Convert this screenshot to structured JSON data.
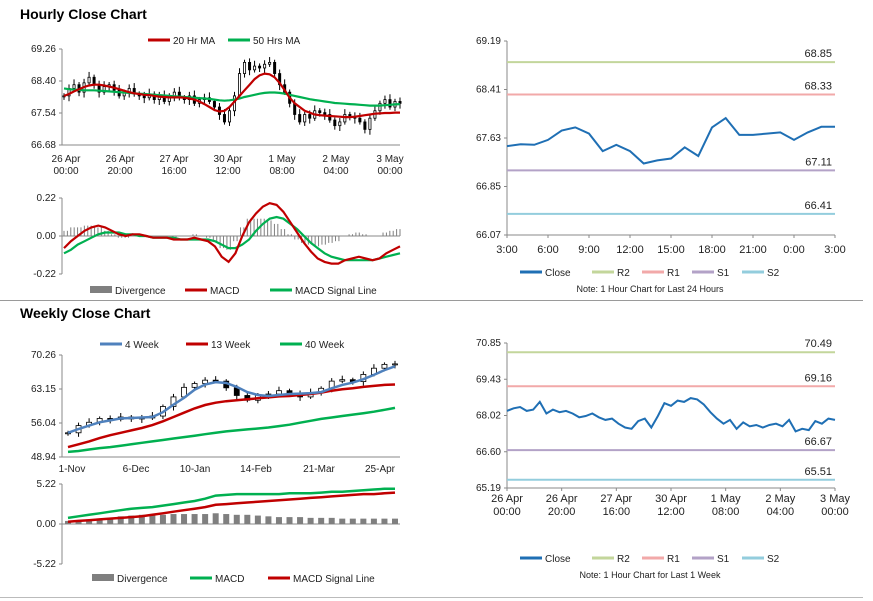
{
  "sections": {
    "hourly_title": "Hourly Close Chart",
    "weekly_title": "Weekly Close Chart"
  },
  "colors": {
    "ma_short": "#c00000",
    "ma_long": "#00b050",
    "close": "#1f6fb4",
    "r2": "#c3d69b",
    "r1": "#f2a9a9",
    "s1": "#b3a2c7",
    "s2": "#93cddd",
    "divergence": "#7f7f7f",
    "week4": "#4f81bd"
  },
  "chart_data": [
    {
      "id": "hourly_price",
      "type": "candlestick",
      "title": "",
      "ylim": [
        66.68,
        69.26
      ],
      "yticks": [
        "69.26",
        "68.40",
        "67.54",
        "66.68"
      ],
      "xticks": [
        [
          "26 Apr",
          "00:00"
        ],
        [
          "26 Apr",
          "20:00"
        ],
        [
          "27 Apr",
          "16:00"
        ],
        [
          "30 Apr",
          "12:00"
        ],
        [
          "1 May",
          "08:00"
        ],
        [
          "2 May",
          "04:00"
        ],
        [
          "3 May",
          "00:00"
        ]
      ],
      "legend": [
        "20 Hr MA",
        "50 Hrs MA"
      ],
      "close_series": [
        68.0,
        68.2,
        68.3,
        68.1,
        68.35,
        68.5,
        68.3,
        68.1,
        68.25,
        68.3,
        68.15,
        68.0,
        68.1,
        68.2,
        68.05,
        68.0,
        67.95,
        68.05,
        67.9,
        68.0,
        67.85,
        68.0,
        68.1,
        67.95,
        67.9,
        68.0,
        67.8,
        67.9,
        67.95,
        67.85,
        67.7,
        67.5,
        67.3,
        67.6,
        68.0,
        68.6,
        68.9,
        68.7,
        68.8,
        68.75,
        68.85,
        68.9,
        68.6,
        68.3,
        68.1,
        67.8,
        67.5,
        67.3,
        67.5,
        67.4,
        67.6,
        67.55,
        67.5,
        67.35,
        67.2,
        67.3,
        67.5,
        67.45,
        67.4,
        67.3,
        67.1,
        67.4,
        67.6,
        67.8,
        67.9,
        67.7,
        67.85,
        67.8
      ],
      "ma20": [
        68.0,
        68.05,
        68.12,
        68.18,
        68.24,
        68.28,
        68.3,
        68.3,
        68.28,
        68.25,
        68.22,
        68.18,
        68.14,
        68.1,
        68.07,
        68.05,
        68.03,
        68.02,
        68.0,
        67.98,
        67.97,
        67.96,
        67.96,
        67.96,
        67.95,
        67.93,
        67.9,
        67.85,
        67.78,
        67.7,
        67.62,
        67.58,
        67.6,
        67.7,
        67.85,
        68.0,
        68.15,
        68.3,
        68.45,
        68.55,
        68.6,
        68.58,
        68.5,
        68.35,
        68.15,
        67.95,
        67.8,
        67.7,
        67.6,
        67.55,
        67.5,
        67.48,
        67.47,
        67.46,
        67.45,
        67.44,
        67.43,
        67.43,
        67.44,
        67.46,
        67.48,
        67.5,
        67.52,
        67.53,
        67.54,
        67.54,
        67.55,
        67.55
      ],
      "ma50": [
        68.2,
        68.18,
        68.17,
        68.16,
        68.15,
        68.15,
        68.15,
        68.14,
        68.13,
        68.12,
        68.11,
        68.1,
        68.09,
        68.08,
        68.07,
        68.06,
        68.05,
        68.04,
        68.03,
        68.02,
        68.01,
        68.0,
        67.99,
        67.98,
        67.97,
        67.96,
        67.95,
        67.94,
        67.93,
        67.92,
        67.9,
        67.88,
        67.87,
        67.88,
        67.9,
        67.93,
        67.97,
        68.0,
        68.03,
        68.06,
        68.08,
        68.09,
        68.09,
        68.08,
        68.06,
        68.03,
        68.0,
        67.97,
        67.94,
        67.91,
        67.89,
        67.87,
        67.85,
        67.83,
        67.81,
        67.8,
        67.79,
        67.78,
        67.77,
        67.76,
        67.75,
        67.74,
        67.74,
        67.74,
        67.75,
        67.76,
        67.77,
        67.78
      ]
    },
    {
      "id": "hourly_macd",
      "type": "line+bar",
      "ylim": [
        -0.22,
        0.22
      ],
      "yticks": [
        "0.22",
        "0.00",
        "-0.22"
      ],
      "legend": [
        "Divergence",
        "MACD",
        "MACD Signal Line"
      ],
      "macd": [
        -0.07,
        -0.03,
        0.0,
        0.03,
        0.05,
        0.06,
        0.05,
        0.03,
        0.01,
        0.0,
        0.01,
        0.01,
        0.0,
        -0.01,
        -0.01,
        -0.01,
        -0.02,
        -0.02,
        -0.02,
        -0.01,
        -0.02,
        -0.03,
        -0.06,
        -0.12,
        -0.15,
        -0.1,
        0.0,
        0.08,
        0.13,
        0.17,
        0.19,
        0.18,
        0.14,
        0.08,
        0.02,
        -0.04,
        -0.09,
        -0.13,
        -0.15,
        -0.16,
        -0.16,
        -0.14,
        -0.13,
        -0.12,
        -0.13,
        -0.14,
        -0.13,
        -0.1,
        -0.08,
        -0.06
      ],
      "signal": [
        -0.1,
        -0.08,
        -0.05,
        -0.03,
        -0.01,
        0.01,
        0.02,
        0.02,
        0.02,
        0.01,
        0.01,
        0.0,
        0.0,
        -0.01,
        -0.01,
        -0.01,
        -0.01,
        -0.02,
        -0.02,
        -0.02,
        -0.02,
        -0.02,
        -0.03,
        -0.05,
        -0.07,
        -0.07,
        -0.05,
        -0.02,
        0.03,
        0.07,
        0.1,
        0.11,
        0.1,
        0.07,
        0.04,
        0.0,
        -0.04,
        -0.07,
        -0.1,
        -0.12,
        -0.13,
        -0.14,
        -0.14,
        -0.14,
        -0.14,
        -0.14,
        -0.13,
        -0.12,
        -0.11,
        -0.1
      ]
    },
    {
      "id": "hourly_close_levels",
      "type": "line",
      "ylim": [
        66.07,
        69.19
      ],
      "yticks": [
        "69.19",
        "68.41",
        "67.63",
        "66.85",
        "66.07"
      ],
      "xticks": [
        "3:00",
        "6:00",
        "9:00",
        "12:00",
        "15:00",
        "18:00",
        "21:00",
        "0:00",
        "3:00"
      ],
      "levels": [
        {
          "name": "R2",
          "value": 68.85,
          "label": "68.85"
        },
        {
          "name": "R1",
          "value": 68.33,
          "label": "68.33"
        },
        {
          "name": "S1",
          "value": 67.11,
          "label": "67.11"
        },
        {
          "name": "S2",
          "value": 66.41,
          "label": "66.41"
        }
      ],
      "close": [
        67.5,
        67.53,
        67.52,
        67.6,
        67.75,
        67.8,
        67.7,
        67.42,
        67.52,
        67.42,
        67.22,
        67.27,
        67.3,
        67.48,
        67.34,
        67.8,
        67.95,
        67.68,
        67.68,
        67.7,
        67.72,
        67.6,
        67.72,
        67.81,
        67.81
      ],
      "legend": [
        "Close",
        "R2",
        "R1",
        "S1",
        "S2"
      ],
      "note": "Note: 1 Hour Chart for Last 24 Hours"
    },
    {
      "id": "weekly_price",
      "type": "candlestick",
      "ylim": [
        48.94,
        70.26
      ],
      "yticks": [
        "70.26",
        "63.15",
        "56.04",
        "48.94"
      ],
      "xticks": [
        "1-Nov",
        "6-Dec",
        "10-Jan",
        "14-Feb",
        "21-Mar",
        "25-Apr"
      ],
      "legend": [
        "4 Week",
        "13 Week",
        "40 Week"
      ],
      "close_series": [
        54,
        55.5,
        56.2,
        57,
        56.8,
        57.3,
        56.9,
        57.1,
        57.5,
        59.5,
        61.5,
        63.5,
        64.3,
        65,
        64.8,
        63.4,
        61.8,
        60.8,
        61.9,
        62.1,
        62.8,
        62.2,
        61.5,
        62.4,
        63.3,
        64.8,
        65.1,
        64.7,
        66.2,
        67.5,
        68.3,
        68.4
      ],
      "week4": [
        54,
        54.8,
        55.5,
        56.2,
        56.6,
        57,
        57.1,
        57.2,
        57.3,
        58.3,
        59.9,
        61.3,
        63,
        64.1,
        64.6,
        64.4,
        63.6,
        62.5,
        61.9,
        61.7,
        61.9,
        62.1,
        62.2,
        62.3,
        62.5,
        63.3,
        64,
        64.5,
        65.2,
        66.1,
        67.1,
        67.9
      ],
      "week13": [
        51,
        51.6,
        52.2,
        52.9,
        53.5,
        54,
        54.5,
        55,
        55.6,
        56.4,
        57.3,
        58.2,
        59.1,
        59.8,
        60.3,
        60.6,
        60.8,
        61,
        61.2,
        61.4,
        61.6,
        61.7,
        61.9,
        62.1,
        62.4,
        62.8,
        63.1,
        63.3,
        63.6,
        63.8,
        64,
        64.1
      ],
      "week40": [
        50,
        50.2,
        50.5,
        50.8,
        51,
        51.3,
        51.6,
        51.9,
        52.2,
        52.5,
        52.8,
        53.1,
        53.4,
        53.7,
        54,
        54.3,
        54.5,
        54.7,
        54.9,
        55.1,
        55.4,
        55.7,
        56.1,
        56.5,
        56.9,
        57.2,
        57.5,
        57.8,
        58.1,
        58.4,
        58.8,
        59.2
      ]
    },
    {
      "id": "weekly_macd",
      "type": "line+bar",
      "ylim": [
        -5.22,
        5.22
      ],
      "yticks": [
        "5.22",
        "0.00",
        "-5.22"
      ],
      "legend": [
        "Divergence",
        "MACD",
        "MACD Signal Line"
      ],
      "macd": [
        0.8,
        1.0,
        1.2,
        1.4,
        1.6,
        1.8,
        2.0,
        2.1,
        2.2,
        2.4,
        2.6,
        2.8,
        3.0,
        3.3,
        3.7,
        3.8,
        3.9,
        3.9,
        3.9,
        3.9,
        3.9,
        4.0,
        4.0,
        4.0,
        4.1,
        4.2,
        4.2,
        4.3,
        4.4,
        4.5,
        4.6,
        4.6
      ],
      "signal": [
        0.3,
        0.4,
        0.5,
        0.6,
        0.7,
        0.8,
        0.9,
        1.0,
        1.2,
        1.4,
        1.6,
        1.8,
        2.0,
        2.2,
        2.5,
        2.6,
        2.7,
        2.8,
        2.9,
        3.0,
        3.1,
        3.2,
        3.3,
        3.4,
        3.5,
        3.6,
        3.7,
        3.8,
        3.9,
        3.9,
        4.0,
        4.1
      ],
      "divergence": [
        0.4,
        0.5,
        0.6,
        0.7,
        0.8,
        1.0,
        1.1,
        1.2,
        1.2,
        1.2,
        1.3,
        1.3,
        1.3,
        1.3,
        1.4,
        1.3,
        1.2,
        1.2,
        1.1,
        1.0,
        0.9,
        0.9,
        0.9,
        0.8,
        0.8,
        0.8,
        0.7,
        0.7,
        0.7,
        0.7,
        0.7,
        0.7
      ]
    },
    {
      "id": "weekly_close_levels",
      "type": "line",
      "ylim": [
        65.19,
        70.85
      ],
      "yticks": [
        "70.85",
        "69.43",
        "68.02",
        "66.60",
        "65.19"
      ],
      "xticks": [
        [
          "26 Apr",
          "00:00"
        ],
        [
          "26 Apr",
          "20:00"
        ],
        [
          "27 Apr",
          "16:00"
        ],
        [
          "30 Apr",
          "12:00"
        ],
        [
          "1 May",
          "08:00"
        ],
        [
          "2 May",
          "04:00"
        ],
        [
          "3 May",
          "00:00"
        ]
      ],
      "levels": [
        {
          "name": "R2",
          "value": 70.49,
          "label": "70.49"
        },
        {
          "name": "R1",
          "value": 69.16,
          "label": "69.16"
        },
        {
          "name": "S1",
          "value": 66.67,
          "label": "66.67"
        },
        {
          "name": "S2",
          "value": 65.51,
          "label": "65.51"
        }
      ],
      "close": [
        68.2,
        68.3,
        68.35,
        68.2,
        68.25,
        68.55,
        68.1,
        68.25,
        68.15,
        68.2,
        68.1,
        67.95,
        68.0,
        68.1,
        67.95,
        67.85,
        67.9,
        67.7,
        67.55,
        67.5,
        67.8,
        67.9,
        67.55,
        68.0,
        68.5,
        68.4,
        68.6,
        68.55,
        68.7,
        68.65,
        68.45,
        68.15,
        67.9,
        67.7,
        67.85,
        67.5,
        67.75,
        67.6,
        67.65,
        67.55,
        67.65,
        67.7,
        67.6,
        67.85,
        67.4,
        67.5,
        67.45,
        67.8,
        67.7,
        67.9,
        67.85
      ],
      "legend": [
        "Close",
        "R2",
        "R1",
        "S1",
        "S2"
      ],
      "note": "Note: 1 Hour Chart for Last 1 Week"
    }
  ]
}
